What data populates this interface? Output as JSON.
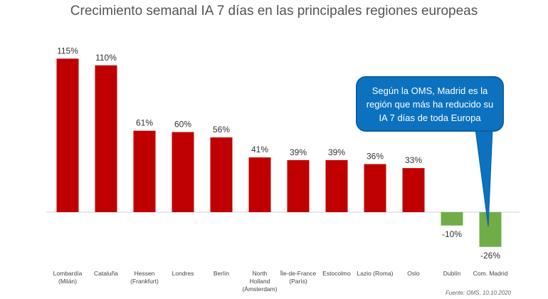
{
  "chart_data": {
    "type": "bar",
    "title": "Crecimiento semanal IA 7 días en las principales regiones europeas",
    "categories": [
      [
        "Lombardía",
        "(Milán)"
      ],
      [
        "Cataluña"
      ],
      [
        "Hessen",
        "(Frankfurt)"
      ],
      [
        "Londres"
      ],
      [
        "Berlín"
      ],
      [
        "North",
        "Holland",
        "(Ámsterdam)"
      ],
      [
        "Île-de-France",
        "(París)"
      ],
      [
        "Estocolmo"
      ],
      [
        "Lazio (Roma)"
      ],
      [
        "Oslo"
      ],
      [
        "Dublín"
      ],
      [
        "Com. Madrid"
      ]
    ],
    "values": [
      115,
      110,
      61,
      60,
      56,
      41,
      39,
      39,
      36,
      33,
      -10,
      -26
    ],
    "data_labels": [
      "115%",
      "110%",
      "61%",
      "60%",
      "56%",
      "41%",
      "39%",
      "39%",
      "36%",
      "33%",
      "-10%",
      "-26%"
    ],
    "colors": {
      "positive": "#c00000",
      "negative": "#70ad47",
      "callout": "#0c72c0"
    },
    "annotation": "Según la OMS, Madrid es la región que más ha reducido su IA 7 días de toda Europa",
    "source": "Fuente: OMS, 10.10.2020"
  }
}
